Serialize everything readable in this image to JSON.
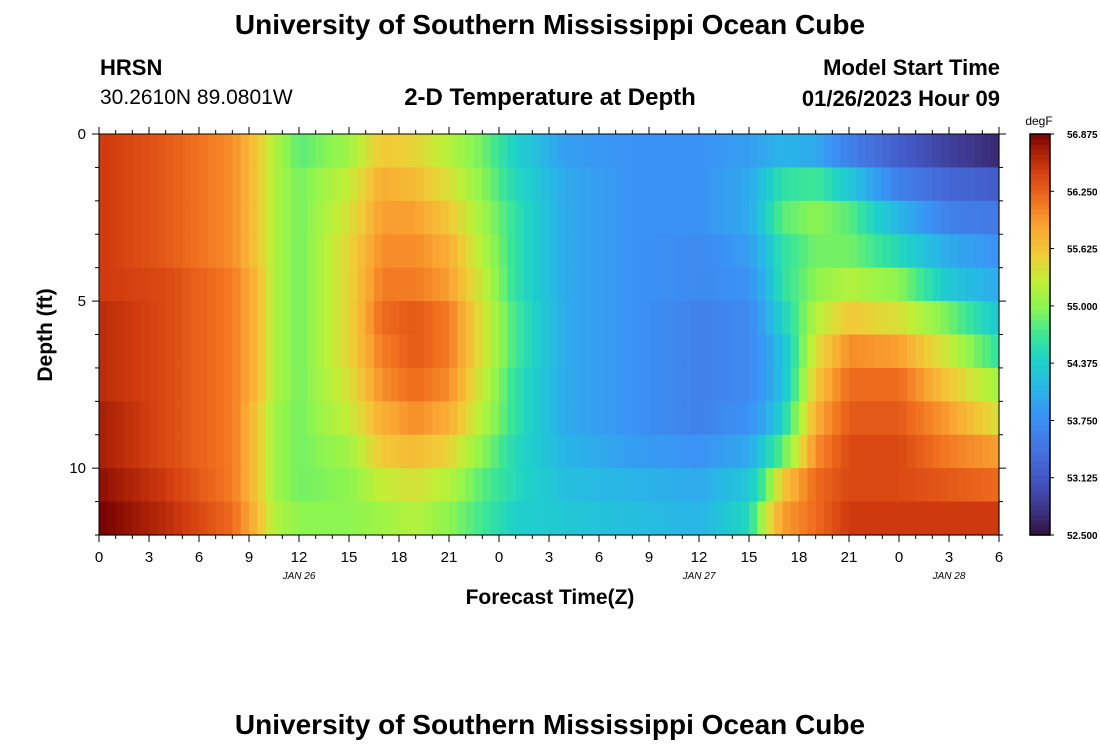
{
  "header": {
    "title": "University of Southern Mississippi Ocean Cube",
    "station": "HRSN",
    "coords": "30.2610N  89.0801W",
    "subtitle": "2-D Temperature at Depth",
    "model_label": "Model Start Time",
    "model_time": "01/26/2023 Hour 09"
  },
  "footer": {
    "title": "University of Southern Mississippi Ocean Cube"
  },
  "chart_data": {
    "type": "heatmap",
    "title": "2-D Temperature at Depth",
    "xlabel": "Forecast Time(Z)",
    "ylabel": "Depth (ft)",
    "x_hours_from_start": [
      0,
      54
    ],
    "x_tick_hours": [
      0,
      3,
      6,
      9,
      12,
      15,
      18,
      21,
      24,
      27,
      30,
      33,
      36,
      39,
      42,
      45,
      48,
      51,
      54
    ],
    "x_tick_labels": [
      "0",
      "3",
      "6",
      "9",
      "12",
      "15",
      "18",
      "21",
      "0",
      "3",
      "6",
      "9",
      "12",
      "15",
      "18",
      "21",
      "0",
      "3",
      "6"
    ],
    "date_labels": [
      {
        "hour": 12,
        "text": "JAN 26"
      },
      {
        "hour": 36,
        "text": "JAN 27"
      },
      {
        "hour": 51,
        "text": "JAN 28"
      }
    ],
    "y_range_ft": [
      0,
      12
    ],
    "y_tick_values": [
      0,
      5,
      10
    ],
    "y_tick_labels": [
      "0",
      "5",
      "10"
    ],
    "colorbar": {
      "units": "degF",
      "min": 52.5,
      "max": 56.875,
      "tick_values": [
        56.875,
        56.25,
        55.625,
        55.0,
        54.375,
        53.75,
        53.125,
        52.5
      ],
      "tick_labels": [
        "56.875",
        "56.250",
        "55.625",
        "55.000",
        "54.375",
        "53.750",
        "53.125",
        "52.500"
      ]
    },
    "depth_levels_ft": [
      0.5,
      1.5,
      2.5,
      3.5,
      4.5,
      5.5,
      6.5,
      7.5,
      8.5,
      9.5,
      10.5,
      11.5
    ],
    "time_knots_hours": [
      0,
      4,
      8,
      9.5,
      10.5,
      12,
      15,
      17,
      19,
      21,
      23,
      25,
      28,
      32,
      36,
      39,
      40,
      41,
      43,
      45,
      48,
      51,
      54
    ],
    "temperature_degF": [
      [
        56.5,
        56.3,
        56.0,
        55.6,
        55.2,
        54.8,
        55.1,
        55.6,
        55.5,
        55.2,
        54.9,
        54.4,
        53.9,
        53.8,
        53.8,
        53.9,
        54.0,
        54.1,
        54.0,
        53.6,
        53.2,
        52.9,
        52.7
      ],
      [
        56.5,
        56.3,
        56.0,
        55.6,
        55.2,
        54.9,
        55.3,
        55.8,
        55.7,
        55.4,
        55.0,
        54.5,
        54.0,
        53.8,
        53.8,
        54.0,
        54.3,
        54.6,
        54.7,
        54.3,
        53.6,
        53.3,
        53.2
      ],
      [
        56.5,
        56.3,
        56.0,
        55.6,
        55.2,
        54.9,
        55.4,
        55.9,
        55.9,
        55.6,
        55.1,
        54.6,
        54.0,
        53.8,
        53.8,
        54.0,
        54.4,
        54.8,
        55.0,
        54.8,
        54.1,
        53.6,
        53.5
      ],
      [
        56.5,
        56.3,
        56.0,
        55.6,
        55.2,
        54.9,
        55.5,
        56.0,
        56.0,
        55.8,
        55.2,
        54.6,
        54.0,
        53.8,
        53.7,
        53.9,
        54.2,
        54.6,
        54.9,
        54.9,
        54.5,
        54.0,
        53.8
      ],
      [
        56.5,
        56.4,
        56.1,
        55.7,
        55.2,
        54.9,
        55.5,
        56.1,
        56.1,
        55.9,
        55.3,
        54.6,
        54.0,
        53.8,
        53.7,
        53.8,
        54.1,
        54.6,
        55.0,
        55.2,
        55.0,
        54.3,
        54.0
      ],
      [
        56.6,
        56.4,
        56.1,
        55.7,
        55.2,
        54.9,
        55.5,
        56.2,
        56.3,
        56.1,
        55.4,
        54.7,
        54.0,
        53.8,
        53.6,
        53.7,
        54.0,
        54.4,
        55.2,
        55.6,
        55.4,
        54.9,
        54.3
      ],
      [
        56.6,
        56.4,
        56.1,
        55.7,
        55.2,
        54.9,
        55.5,
        56.1,
        56.3,
        56.1,
        55.4,
        54.7,
        54.0,
        53.8,
        53.6,
        53.7,
        53.9,
        54.2,
        55.4,
        56.0,
        55.9,
        55.3,
        54.6
      ],
      [
        56.6,
        56.4,
        56.1,
        55.7,
        55.2,
        54.9,
        55.4,
        56.0,
        56.2,
        56.0,
        55.3,
        54.6,
        54.0,
        53.8,
        53.6,
        53.7,
        53.9,
        54.2,
        55.6,
        56.2,
        56.2,
        55.6,
        55.1
      ],
      [
        56.7,
        56.4,
        56.1,
        55.6,
        55.1,
        54.9,
        55.3,
        55.8,
        56.0,
        55.8,
        55.2,
        54.6,
        54.0,
        53.8,
        53.6,
        53.8,
        54.0,
        54.4,
        55.8,
        56.3,
        56.3,
        55.9,
        55.4
      ],
      [
        56.7,
        56.4,
        56.1,
        55.6,
        55.1,
        54.9,
        55.1,
        55.6,
        55.7,
        55.5,
        55.0,
        54.5,
        54.1,
        53.9,
        53.8,
        54.0,
        54.4,
        54.8,
        56.0,
        56.4,
        56.4,
        56.1,
        55.9
      ],
      [
        56.8,
        56.5,
        56.1,
        55.6,
        55.1,
        54.9,
        55.0,
        55.3,
        55.4,
        55.2,
        54.8,
        54.5,
        54.2,
        54.1,
        54.0,
        54.3,
        54.8,
        55.6,
        56.2,
        56.4,
        56.4,
        56.3,
        56.2
      ],
      [
        56.9,
        56.6,
        56.2,
        55.7,
        55.2,
        55.0,
        55.0,
        55.1,
        55.2,
        55.0,
        54.7,
        54.4,
        54.3,
        54.2,
        54.1,
        54.5,
        55.3,
        55.9,
        56.2,
        56.5,
        56.5,
        56.5,
        56.5
      ]
    ]
  }
}
